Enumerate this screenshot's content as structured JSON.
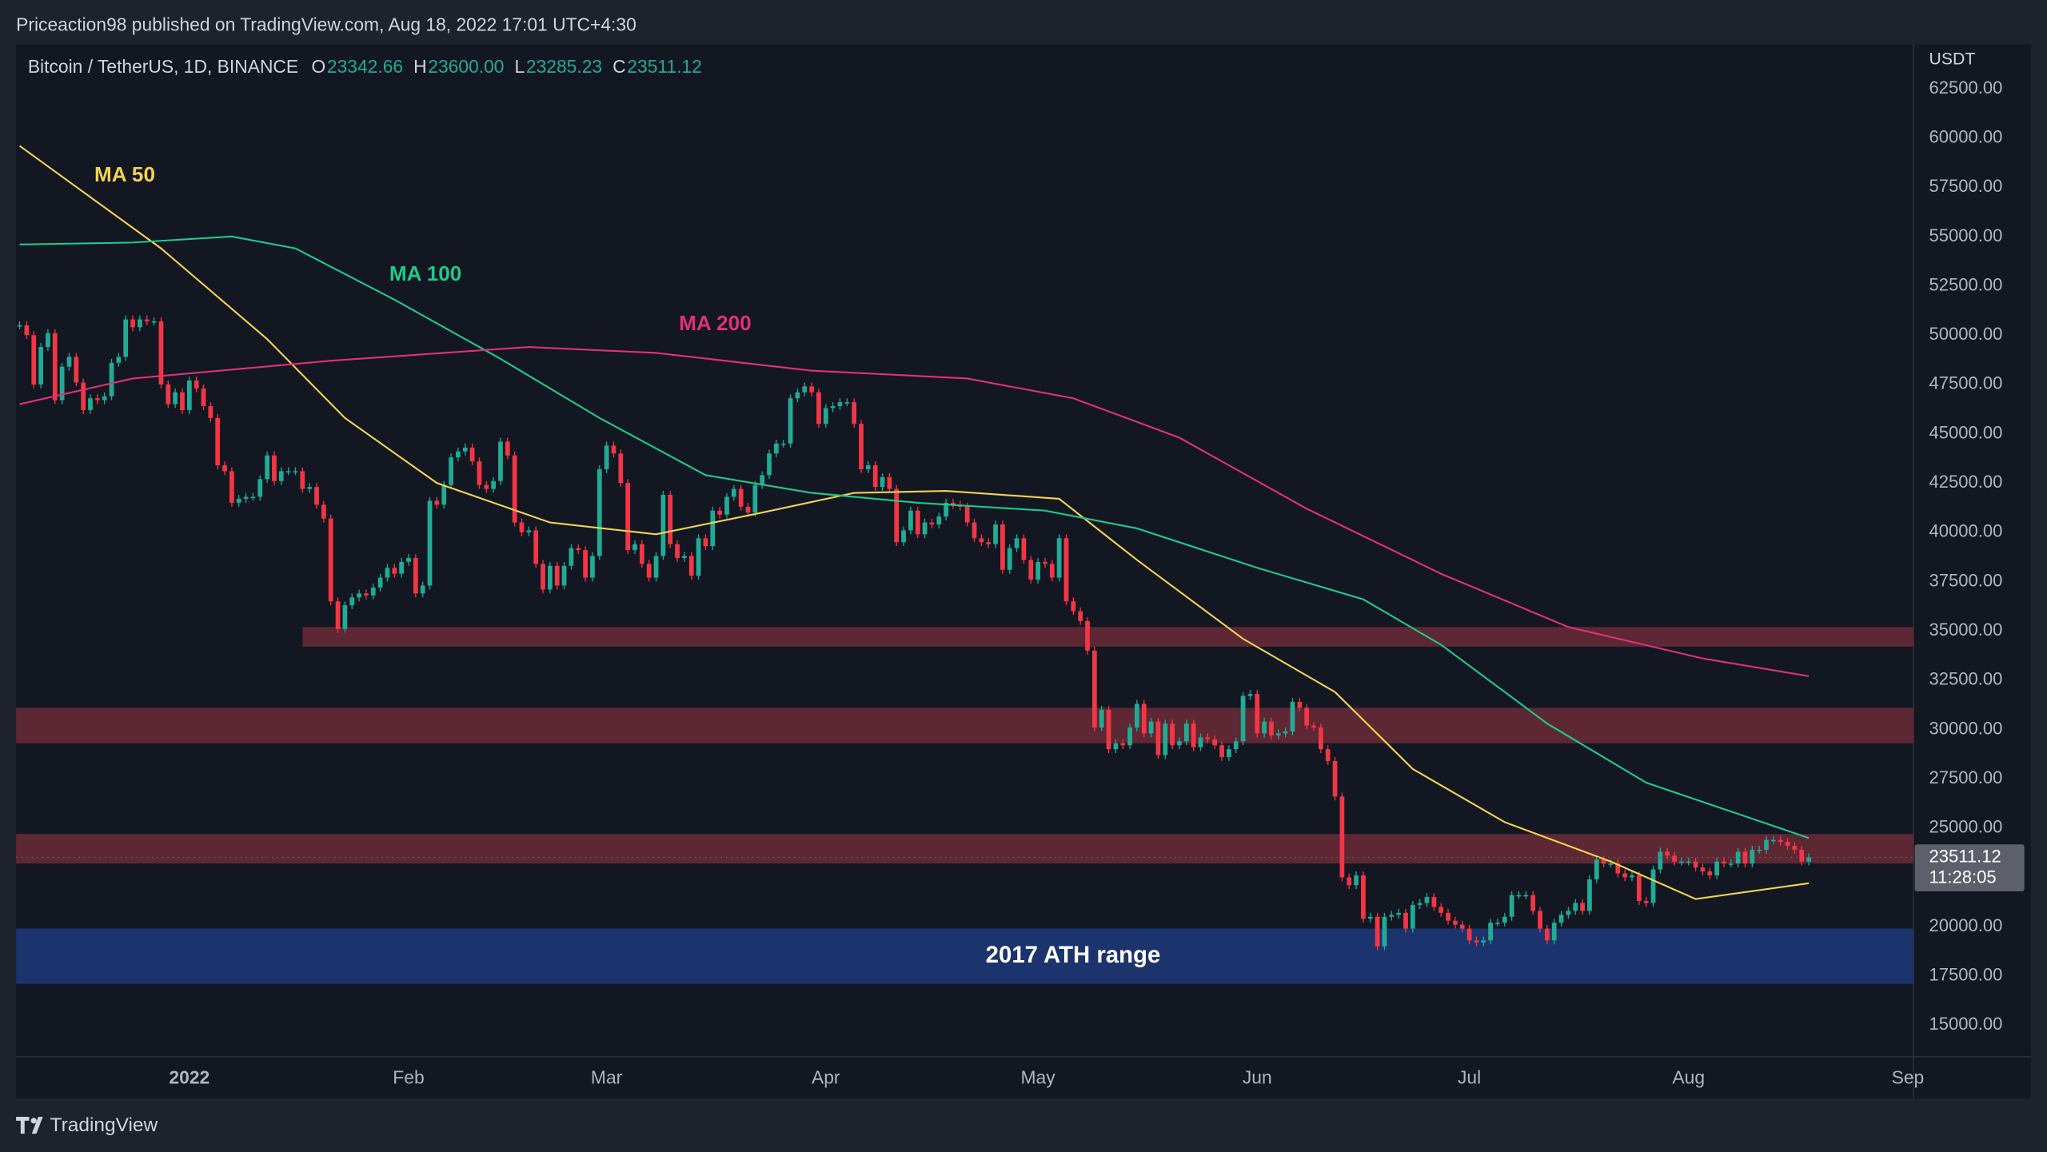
{
  "header": {
    "text": "Priceaction98 published on TradingView.com, Aug 18, 2022 17:01 UTC+4:30"
  },
  "footer": {
    "brand": "TradingView"
  },
  "chart_data": {
    "type": "candlestick",
    "title": "Bitcoin / TetherUS, 1D, BINANCE",
    "ohlc": [
      {
        "name": "O",
        "value": 23342.66
      },
      {
        "name": "H",
        "value": {
          "value": 23600,
          "label": "23600.00"
        }
      },
      {
        "name": "L",
        "value": 23285.23
      },
      {
        "name": "C",
        "value": 23511.12
      }
    ],
    "y_unit": "USDT",
    "up_color": "#22ab94",
    "down_color": "#f23645",
    "candles": {
      "close": [
        50500,
        50000,
        47500,
        49400,
        50100,
        46700,
        48400,
        48900,
        47600,
        46200,
        46800,
        46700,
        46900,
        48600,
        48900,
        50800,
        50400,
        50800,
        50700,
        50700,
        47500,
        46500,
        47100,
        46200,
        47700,
        47300,
        46400,
        45800,
        43400,
        43100,
        41500,
        41700,
        41800,
        41800,
        42700,
        43900,
        42600,
        43100,
        43100,
        43100,
        42200,
        42300,
        41400,
        40700,
        36500,
        35100,
        36300,
        36700,
        36900,
        36800,
        37200,
        37700,
        38200,
        37900,
        38500,
        38700,
        36900,
        37300,
        41600,
        41400,
        42400,
        43800,
        44100,
        44300,
        43600,
        42400,
        42200,
        42600,
        44600,
        43900,
        40500,
        40000,
        40100,
        38400,
        37100,
        38300,
        37300,
        38300,
        39200,
        39100,
        37700,
        38800,
        43200,
        44400,
        44000,
        42500,
        39100,
        39400,
        38400,
        37700,
        38800,
        41900,
        39400,
        38700,
        38800,
        37800,
        39700,
        39300,
        41100,
        40900,
        41800,
        42200,
        41300,
        41000,
        42400,
        42900,
        44000,
        44500,
        44500,
        46800,
        47100,
        47400,
        47100,
        45500,
        46300,
        46400,
        46600,
        46600,
        45500,
        43200,
        43400,
        42300,
        42800,
        42200,
        39500,
        40100,
        41100,
        39900,
        40500,
        40400,
        40800,
        41500,
        41400,
        41300,
        40500,
        39700,
        39500,
        39400,
        40400,
        38100,
        39200,
        39700,
        38600,
        37600,
        38500,
        38400,
        37700,
        39700,
        36500,
        36000,
        35500,
        34000,
        30100,
        31000,
        29000,
        29300,
        29200,
        30100,
        31300,
        29800,
        30400,
        28700,
        30300,
        29200,
        29400,
        30300,
        29100,
        29600,
        29500,
        29200,
        28600,
        29000,
        29400,
        31700,
        31800,
        29800,
        30400,
        29700,
        29800,
        29900,
        31400,
        31100,
        30200,
        30100,
        29000,
        28400,
        26600,
        22500,
        22100,
        22600,
        20400,
        20500,
        19000,
        20500,
        20600,
        20700,
        19900,
        21100,
        21200,
        21500,
        21000,
        20700,
        20300,
        20100,
        19900,
        19300,
        19200,
        19300,
        20200,
        20200,
        20500,
        21600,
        21600,
        21600,
        20800,
        19900,
        19300,
        20200,
        20600,
        20800,
        21200,
        20800,
        22400,
        23400,
        23200,
        23200,
        22700,
        22500,
        22600,
        21300,
        21200,
        22900,
        23800,
        23600,
        23300,
        23300,
        23300,
        23000,
        22800,
        22600,
        23300,
        23200,
        23200,
        23800,
        23200,
        23900,
        23900,
        24400,
        24400,
        24300,
        24100,
        23900,
        23300,
        23511.12
      ]
    },
    "series": [
      {
        "name": "MA 50",
        "color": "#f2d34f",
        "x": [
          0,
          20,
          35,
          46,
          59,
          75,
          90,
          105,
          118,
          131,
          147,
          158,
          173,
          186,
          197,
          210,
          225,
          237,
          253
        ],
        "values": [
          59600,
          54400,
          49800,
          45800,
          42500,
          40500,
          39900,
          41000,
          42000,
          42100,
          41700,
          38600,
          34600,
          31900,
          28000,
          25300,
          23300,
          21400,
          22200
        ]
      },
      {
        "name": "MA 100",
        "color": "#1fc98a",
        "x": [
          0,
          16,
          30,
          39,
          53,
          68,
          82,
          97,
          112,
          127,
          145,
          158,
          175,
          190,
          201,
          216,
          230,
          253
        ],
        "values": [
          54600,
          54700,
          55000,
          54400,
          51800,
          48800,
          45800,
          42900,
          42000,
          41500,
          41100,
          40200,
          38200,
          36600,
          34300,
          30300,
          27300,
          24500
        ]
      },
      {
        "name": "MA 200",
        "color": "#e0307a",
        "x": [
          0,
          16,
          44,
          72,
          90,
          112,
          134,
          149,
          164,
          182,
          201,
          219,
          238,
          253
        ],
        "values": [
          46500,
          47800,
          48700,
          49400,
          49100,
          48200,
          47800,
          46800,
          44800,
          41200,
          37900,
          35200,
          33600,
          32700
        ]
      }
    ],
    "zones": [
      {
        "lo": 34200,
        "hi": 35200,
        "x_start": 40,
        "color": "#6b2a36"
      },
      {
        "lo": 29300,
        "hi": 31100,
        "color": "#6b2a36"
      },
      {
        "lo": 23200,
        "hi": 24700,
        "color": "#6b2a36"
      },
      {
        "lo": 17100,
        "hi": 19900,
        "color": "#1f3a7a",
        "label": "2017 ATH range"
      }
    ],
    "last_price": {
      "value": 23511.12,
      "countdown": "11:28:05"
    },
    "xlim": [
      -0.5,
      267.8
    ],
    "ylim": [
      13400,
      64750
    ],
    "xticks": [
      {
        "value": 24,
        "label": "2022"
      },
      {
        "value": 55,
        "label": "Feb"
      },
      {
        "value": 83,
        "label": "Mar"
      },
      {
        "value": 114,
        "label": "Apr"
      },
      {
        "value": 144,
        "label": "May"
      },
      {
        "value": 175,
        "label": "Jun"
      },
      {
        "value": 205,
        "label": "Jul"
      },
      {
        "value": 236,
        "label": "Aug"
      },
      {
        "value": 267,
        "label": "Sep"
      }
    ],
    "yticks": [
      {
        "value": 15000,
        "label": "15000.00"
      },
      {
        "value": 17500,
        "label": "17500.00"
      },
      {
        "value": 20000,
        "label": "20000.00"
      },
      {
        "value": 22500,
        "label": "22500.00"
      },
      {
        "value": 25000,
        "label": "25000.00"
      },
      {
        "value": 27500,
        "label": "27500.00"
      },
      {
        "value": 30000,
        "label": "30000.00"
      },
      {
        "value": 32500,
        "label": "32500.00"
      },
      {
        "value": 35000,
        "label": "35000.00"
      },
      {
        "value": 37500,
        "label": "37500.00"
      },
      {
        "value": 40000,
        "label": "40000.00"
      },
      {
        "value": 42500,
        "label": "42500.00"
      },
      {
        "value": 45000,
        "label": "45000.00"
      },
      {
        "value": 47500,
        "label": "47500.00"
      },
      {
        "value": 50000,
        "label": "50000.00"
      },
      {
        "value": 52500,
        "label": "52500.00"
      },
      {
        "value": 55000,
        "label": "55000.00"
      },
      {
        "value": 57500,
        "label": "57500.00"
      },
      {
        "value": 60000,
        "label": "60000.00"
      },
      {
        "value": 62500,
        "label": "62500.00"
      }
    ],
    "grid": false
  }
}
